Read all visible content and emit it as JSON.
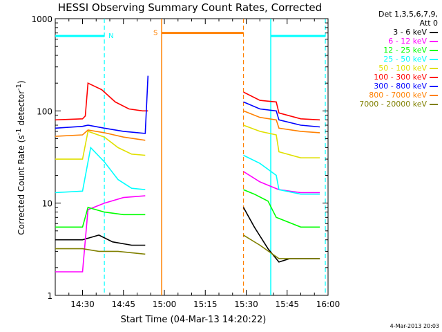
{
  "chart_data": {
    "type": "line",
    "title": "HESSI Observing Summary Count Rates, Corrected",
    "xlabel": "Start Time (04-Mar-13 14:20:22)",
    "ylabel": "Corrected Count Rate (s⁻¹ detector⁻¹)",
    "ylabel_parts": {
      "main": "Corrected Count Rate (s",
      "sup1": "-1",
      "mid": " detector",
      "sup2": "-1",
      "end": ")"
    },
    "xscale": "time",
    "yscale": "log",
    "xlim": [
      "14:20",
      "16:00"
    ],
    "ylim": [
      1,
      1000
    ],
    "x_ticks": [
      "14:30",
      "14:45",
      "15:00",
      "15:15",
      "15:30",
      "15:45",
      "16:00"
    ],
    "y_ticks": [
      "1",
      "10",
      "100",
      "1000"
    ],
    "legend_header": [
      "Det 1,3,5,6,7,9,",
      "Att 0"
    ],
    "legend_position": "right",
    "series": [
      {
        "name": "3 - 6 keV",
        "color": "#000000",
        "points": [
          [
            "14:20",
            4.0
          ],
          [
            "14:30",
            4.0
          ],
          [
            "14:36",
            4.5
          ],
          [
            "14:41",
            3.8
          ],
          [
            "14:48",
            3.5
          ],
          [
            "14:53",
            3.5
          ],
          [
            "15:29",
            9.0
          ],
          [
            "15:33",
            5.5
          ],
          [
            "15:38",
            3.2
          ],
          [
            "15:42",
            2.3
          ],
          [
            "15:46",
            2.5
          ],
          [
            "15:50",
            2.5
          ],
          [
            "15:55",
            2.5
          ],
          [
            "15:57",
            2.5
          ]
        ]
      },
      {
        "name": "6 - 12 keV",
        "color": "#ff00ff",
        "points": [
          [
            "14:20",
            1.8
          ],
          [
            "14:30",
            1.8
          ],
          [
            "14:32",
            8.5
          ],
          [
            "14:38",
            10.0
          ],
          [
            "14:45",
            11.5
          ],
          [
            "14:53",
            12.0
          ],
          [
            "15:29",
            22.0
          ],
          [
            "15:35",
            17.0
          ],
          [
            "15:42",
            14.0
          ],
          [
            "15:50",
            13.0
          ],
          [
            "15:57",
            13.0
          ]
        ]
      },
      {
        "name": "12 - 25 keV",
        "color": "#00ff00",
        "points": [
          [
            "14:20",
            5.5
          ],
          [
            "14:30",
            5.5
          ],
          [
            "14:32",
            9.0
          ],
          [
            "14:38",
            8.0
          ],
          [
            "14:45",
            7.5
          ],
          [
            "14:53",
            7.5
          ],
          [
            "15:29",
            14.0
          ],
          [
            "15:33",
            12.5
          ],
          [
            "15:38",
            10.5
          ],
          [
            "15:41",
            7.0
          ],
          [
            "15:50",
            5.5
          ],
          [
            "15:57",
            5.5
          ]
        ]
      },
      {
        "name": "25 - 50 keV",
        "color": "#00ffff",
        "points": [
          [
            "14:20",
            13.0
          ],
          [
            "14:30",
            13.5
          ],
          [
            "14:33",
            40.0
          ],
          [
            "14:38",
            28.0
          ],
          [
            "14:43",
            18.0
          ],
          [
            "14:48",
            14.5
          ],
          [
            "14:53",
            14.0
          ],
          [
            "15:29",
            33.0
          ],
          [
            "15:35",
            27.0
          ],
          [
            "15:41",
            20.0
          ],
          [
            "15:42",
            14.0
          ],
          [
            "15:50",
            12.5
          ],
          [
            "15:57",
            12.5
          ]
        ]
      },
      {
        "name": "50 - 100 keV",
        "color": "#e0e000",
        "points": [
          [
            "14:20",
            30.0
          ],
          [
            "14:30",
            30.0
          ],
          [
            "14:32",
            60.0
          ],
          [
            "14:38",
            52.0
          ],
          [
            "14:43",
            40.0
          ],
          [
            "14:48",
            34.0
          ],
          [
            "14:53",
            33.0
          ],
          [
            "15:29",
            70.0
          ],
          [
            "15:35",
            60.0
          ],
          [
            "15:41",
            55.0
          ],
          [
            "15:42",
            36.0
          ],
          [
            "15:50",
            31.0
          ],
          [
            "15:57",
            31.0
          ]
        ]
      },
      {
        "name": "100 - 300 keV",
        "color": "#ff0000",
        "points": [
          [
            "14:20",
            80.0
          ],
          [
            "14:30",
            82.0
          ],
          [
            "14:31",
            88.0
          ],
          [
            "14:32",
            200.0
          ],
          [
            "14:37",
            170.0
          ],
          [
            "14:42",
            125.0
          ],
          [
            "14:47",
            105.0
          ],
          [
            "14:52",
            100.0
          ],
          [
            "14:54",
            100.0
          ],
          [
            "15:29",
            160.0
          ],
          [
            "15:35",
            130.0
          ],
          [
            "15:41",
            125.0
          ],
          [
            "15:42",
            95.0
          ],
          [
            "15:50",
            82.0
          ],
          [
            "15:57",
            80.0
          ]
        ]
      },
      {
        "name": "300 - 800 keV",
        "color": "#0000ff",
        "points": [
          [
            "14:20",
            65.0
          ],
          [
            "14:30",
            68.0
          ],
          [
            "14:32",
            70.0
          ],
          [
            "14:38",
            65.0
          ],
          [
            "14:45",
            60.0
          ],
          [
            "14:53",
            57.0
          ],
          [
            "14:54",
            240.0
          ],
          [
            "15:29",
            125.0
          ],
          [
            "15:35",
            105.0
          ],
          [
            "15:41",
            100.0
          ],
          [
            "15:42",
            80.0
          ],
          [
            "15:50",
            70.0
          ],
          [
            "15:57",
            67.0
          ]
        ]
      },
      {
        "name": "800 - 7000 keV",
        "color": "#ff8000",
        "points": [
          [
            "14:20",
            53.0
          ],
          [
            "14:30",
            55.0
          ],
          [
            "14:32",
            62.0
          ],
          [
            "14:38",
            58.0
          ],
          [
            "14:45",
            52.0
          ],
          [
            "14:53",
            48.0
          ],
          [
            "15:29",
            100.0
          ],
          [
            "15:35",
            85.0
          ],
          [
            "15:41",
            80.0
          ],
          [
            "15:42",
            65.0
          ],
          [
            "15:50",
            60.0
          ],
          [
            "15:57",
            58.0
          ]
        ]
      },
      {
        "name": "7000 - 20000 keV",
        "color": "#808000",
        "points": [
          [
            "14:20",
            3.2
          ],
          [
            "14:30",
            3.2
          ],
          [
            "14:36",
            3.0
          ],
          [
            "14:43",
            3.0
          ],
          [
            "14:53",
            2.8
          ],
          [
            "15:29",
            4.5
          ],
          [
            "15:35",
            3.5
          ],
          [
            "15:42",
            2.5
          ],
          [
            "15:50",
            2.5
          ],
          [
            "15:57",
            2.5
          ]
        ]
      }
    ],
    "annotations": [
      {
        "type": "span",
        "label": "N",
        "color": "#00ffff",
        "start": "14:20",
        "end": "14:38",
        "level": 650
      },
      {
        "type": "span",
        "label": "",
        "color": "#00ffff",
        "start": "15:39",
        "end": "15:59",
        "level": 650
      },
      {
        "type": "span",
        "label": "S",
        "color": "#ff8000",
        "start": "14:59",
        "end": "15:29",
        "level": 700
      }
    ]
  },
  "stamp": "4-Mar-2013 20:03"
}
